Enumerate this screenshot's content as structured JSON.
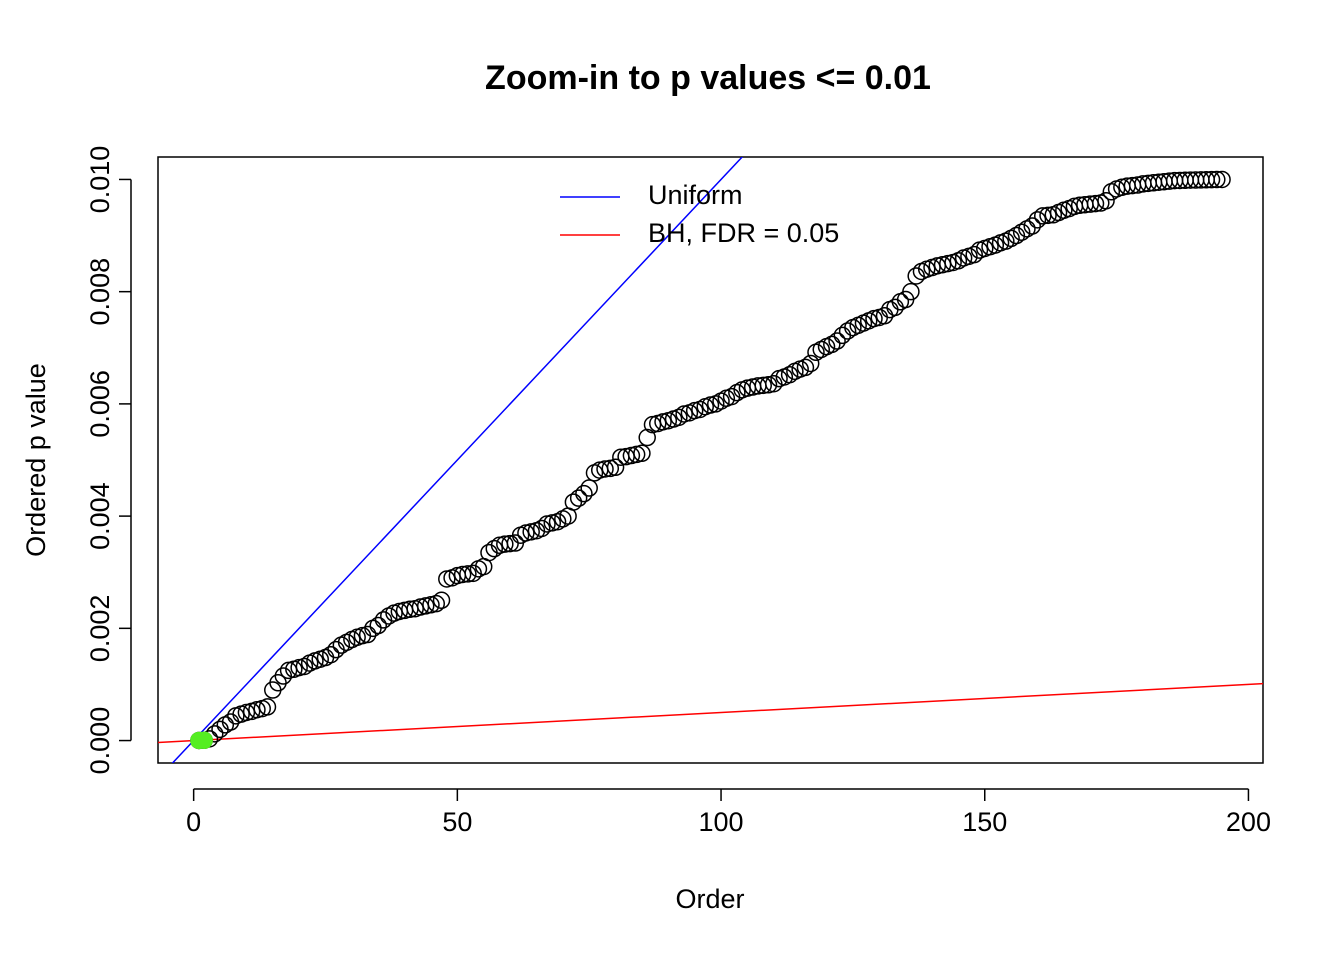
{
  "chart_data": {
    "type": "scatter",
    "title": "Zoom-in to p values <= 0.01",
    "xlabel": "Order",
    "ylabel": "Ordered p value",
    "xlim": [
      -6.76,
      202.76
    ],
    "ylim": [
      -0.0004,
      0.0104
    ],
    "xticks": [
      0,
      50,
      100,
      150,
      200
    ],
    "yticks": [
      {
        "value": 0,
        "label": "0.000"
      },
      {
        "value": 0.002,
        "label": "0.002"
      },
      {
        "value": 0.004,
        "label": "0.004"
      },
      {
        "value": 0.006,
        "label": "0.006"
      },
      {
        "value": 0.008,
        "label": "0.008"
      },
      {
        "value": 0.01,
        "label": "0.010"
      }
    ],
    "points": {
      "color": "#000000",
      "x": [
        1,
        2,
        3,
        4,
        5,
        6,
        7,
        8,
        9,
        10,
        11,
        12,
        13,
        14,
        15,
        16,
        17,
        18,
        19,
        20,
        21,
        22,
        23,
        24,
        25,
        26,
        27,
        28,
        29,
        30,
        31,
        32,
        33,
        34,
        35,
        36,
        37,
        38,
        39,
        40,
        41,
        42,
        43,
        44,
        45,
        46,
        47,
        48,
        49,
        50,
        51,
        52,
        53,
        54,
        55,
        56,
        57,
        58,
        59,
        60,
        61,
        62,
        63,
        64,
        65,
        66,
        67,
        68,
        69,
        70,
        71,
        72,
        73,
        74,
        75,
        76,
        77,
        78,
        79,
        80,
        81,
        82,
        83,
        84,
        85,
        86,
        87,
        88,
        89,
        90,
        91,
        92,
        93,
        94,
        95,
        96,
        97,
        98,
        99,
        100,
        101,
        102,
        103,
        104,
        105,
        106,
        107,
        108,
        109,
        110,
        111,
        112,
        113,
        114,
        115,
        116,
        117,
        118,
        119,
        120,
        121,
        122,
        123,
        124,
        125,
        126,
        127,
        128,
        129,
        130,
        131,
        132,
        133,
        134,
        135,
        136,
        137,
        138,
        139,
        140,
        141,
        142,
        143,
        144,
        145,
        146,
        147,
        148,
        149,
        150,
        151,
        152,
        153,
        154,
        155,
        156,
        157,
        158,
        159,
        160,
        161,
        162,
        163,
        164,
        165,
        166,
        167,
        168,
        169,
        170,
        171,
        172,
        173,
        174,
        175,
        176,
        177,
        178,
        179,
        180,
        181,
        182,
        183,
        184,
        185,
        186,
        187,
        188,
        189,
        190,
        191,
        192,
        193,
        194,
        195
      ],
      "values": [
        2e-06,
        5e-06,
        3e-05,
        0.00012,
        0.0002,
        0.00028,
        0.00033,
        0.00044,
        0.00047,
        0.0005,
        0.00052,
        0.00055,
        0.00057,
        0.0006,
        0.0009,
        0.00103,
        0.00115,
        0.00125,
        0.00127,
        0.0013,
        0.00132,
        0.00138,
        0.00142,
        0.00145,
        0.00148,
        0.00153,
        0.00162,
        0.0017,
        0.00175,
        0.0018,
        0.00184,
        0.00187,
        0.00189,
        0.002,
        0.00205,
        0.00215,
        0.00222,
        0.00227,
        0.0023,
        0.00232,
        0.00234,
        0.00235,
        0.00238,
        0.0024,
        0.00242,
        0.00244,
        0.0025,
        0.00288,
        0.0029,
        0.00294,
        0.00296,
        0.00297,
        0.00298,
        0.00306,
        0.0031,
        0.00335,
        0.00342,
        0.00348,
        0.0035,
        0.00351,
        0.00352,
        0.00366,
        0.0037,
        0.00372,
        0.00374,
        0.00378,
        0.00386,
        0.00388,
        0.0039,
        0.00395,
        0.004,
        0.00425,
        0.00432,
        0.0044,
        0.0045,
        0.00477,
        0.00482,
        0.00484,
        0.00485,
        0.00487,
        0.00505,
        0.00506,
        0.00508,
        0.0051,
        0.00512,
        0.0054,
        0.00563,
        0.00565,
        0.00568,
        0.0057,
        0.00573,
        0.00576,
        0.00582,
        0.00584,
        0.00588,
        0.0059,
        0.00595,
        0.00598,
        0.006,
        0.00605,
        0.0061,
        0.00613,
        0.0062,
        0.00625,
        0.00628,
        0.0063,
        0.00632,
        0.00633,
        0.00634,
        0.00636,
        0.00645,
        0.00648,
        0.00652,
        0.00658,
        0.00662,
        0.00665,
        0.00672,
        0.00692,
        0.00697,
        0.00702,
        0.00706,
        0.00712,
        0.00722,
        0.0073,
        0.00736,
        0.0074,
        0.00744,
        0.00748,
        0.00752,
        0.00754,
        0.00757,
        0.00768,
        0.00772,
        0.00782,
        0.00786,
        0.008,
        0.00828,
        0.00836,
        0.0084,
        0.00843,
        0.00846,
        0.00848,
        0.0085,
        0.00852,
        0.00855,
        0.0086,
        0.00863,
        0.00866,
        0.00874,
        0.00877,
        0.0088,
        0.00883,
        0.00887,
        0.0089,
        0.00895,
        0.009,
        0.00906,
        0.00912,
        0.00917,
        0.00928,
        0.00935,
        0.00936,
        0.00937,
        0.00941,
        0.00945,
        0.00948,
        0.00952,
        0.00954,
        0.00955,
        0.00956,
        0.00957,
        0.00958,
        0.00962,
        0.00978,
        0.00983,
        0.00986,
        0.00988,
        0.00989,
        0.0099,
        0.00992,
        0.00993,
        0.00994,
        0.00995,
        0.00996,
        0.00997,
        0.00998,
        0.009982,
        0.009985,
        0.009988,
        0.00999,
        0.009992,
        0.009994,
        0.009996,
        0.009998,
        0.01
      ]
    },
    "significant": {
      "color": "#55ee22",
      "x": [
        1,
        2
      ],
      "values": [
        2e-06,
        5e-06
      ]
    },
    "lines": [
      {
        "name": "Uniform",
        "color": "#0000ff",
        "slope": 0.0001,
        "intercept": 0
      },
      {
        "name": "BH, FDR = 0.05",
        "color": "#ff0000",
        "slope": 5e-06,
        "intercept": 0
      }
    ],
    "legend": "top"
  }
}
